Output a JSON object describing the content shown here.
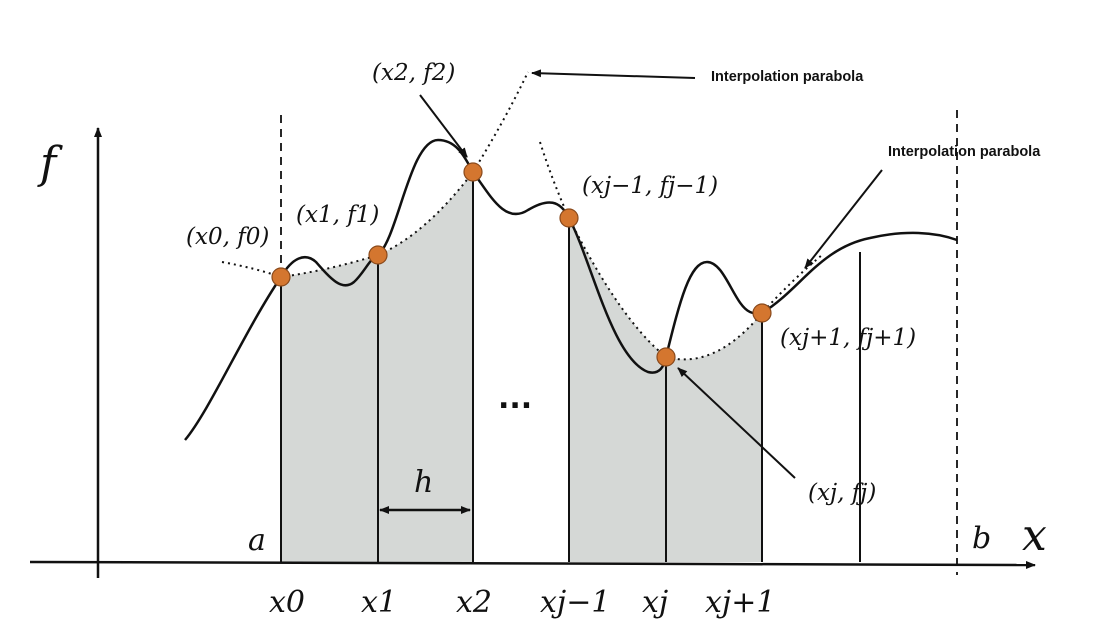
{
  "axes": {
    "x_label": "x",
    "y_label": "f",
    "a_label": "a",
    "b_label": "b"
  },
  "ticks": {
    "x0": "x0",
    "x1": "x1",
    "x2": "x2",
    "xjm1": "xj−1",
    "xj": "xj",
    "xjp1": "xj+1"
  },
  "points": {
    "p0": "(x0, f0)",
    "p1": "(x1, f1)",
    "p2": "(x2, f2)",
    "pjm1": "(xj−1, fj−1)",
    "pj": "(xj, fj)",
    "pjp1": "(xj+1, fj+1)"
  },
  "annotations": {
    "parabola_top": "Interpolation parabola",
    "parabola_right": "Interpolation parabola",
    "step": "h",
    "ellipsis": "..."
  },
  "colors": {
    "shade": "#d5d8d6",
    "node": "#d4762f",
    "ink": "#111111"
  }
}
